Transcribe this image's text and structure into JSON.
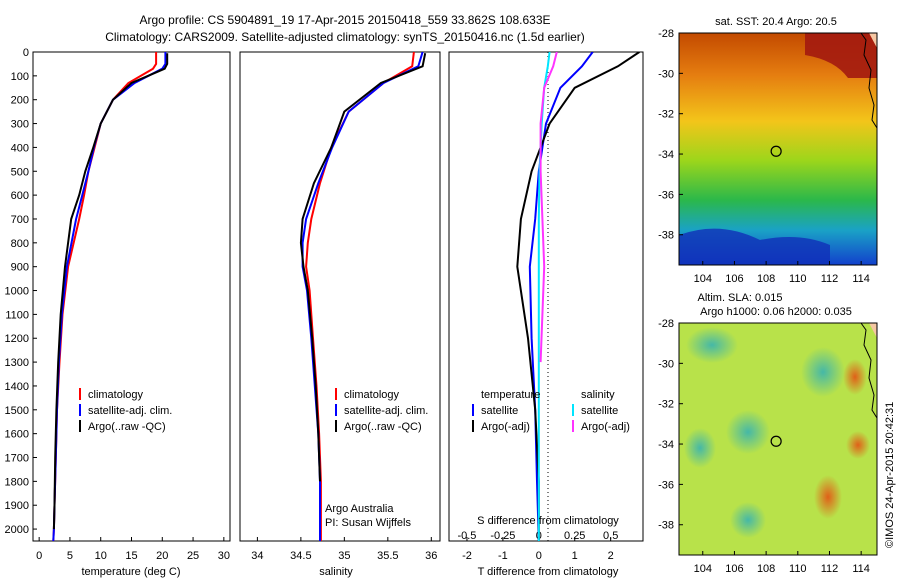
{
  "header": {
    "line1": "Argo profile: CS 5904891_19 17-Apr-2015 20150418_559 33.862S 108.633E",
    "line2": "Climatology: CARS2009. Satellite-adjusted climatology: synTS_20150416.nc (1.5d earlier)"
  },
  "colors": {
    "climatology": "#ff0000",
    "satellite": "#0000ff",
    "argo": "#000000",
    "sat_salinity": "#00e5ff",
    "argo_salinity_adj": "#ff33ff"
  },
  "chart_data": [
    {
      "type": "line",
      "panel": "temperature",
      "xlabel": "temperature (deg C)",
      "ylabel": "",
      "xlim": [
        -1,
        31
      ],
      "ylim": [
        2050,
        0
      ],
      "xticks": [
        "0",
        "5",
        "10",
        "15",
        "20",
        "25",
        "30"
      ],
      "yticks": [
        "0",
        "100",
        "200",
        "300",
        "400",
        "500",
        "600",
        "700",
        "800",
        "900",
        "1000",
        "1100",
        "1200",
        "1300",
        "1400",
        "1500",
        "1600",
        "1700",
        "1800",
        "1900",
        "2000"
      ],
      "legend": [
        "climatology",
        "satellite-adj. clim.",
        "Argo(..raw -QC)"
      ],
      "series": [
        {
          "name": "climatology",
          "color": "#ff0000",
          "x": [
            19.0,
            19.0,
            18.5,
            14.5,
            12.0,
            10.0,
            9.0,
            8.0,
            7.3,
            6.5,
            4.7,
            3.8,
            3.3,
            2.9,
            2.7,
            2.5,
            2.4,
            2.3
          ],
          "y": [
            0,
            50,
            70,
            130,
            200,
            300,
            400,
            500,
            600,
            700,
            900,
            1100,
            1300,
            1500,
            1700,
            1900,
            2000,
            2050
          ]
        },
        {
          "name": "satellite-adj. clim.",
          "color": "#0000ff",
          "x": [
            20.5,
            20.5,
            20.0,
            15.5,
            12.0,
            10.0,
            8.9,
            8.0,
            7.0,
            6.0,
            4.5,
            3.7,
            3.2,
            2.9,
            2.7,
            2.5,
            2.4,
            2.3
          ],
          "y": [
            0,
            50,
            70,
            130,
            200,
            300,
            400,
            500,
            600,
            700,
            900,
            1100,
            1300,
            1500,
            1700,
            1900,
            2000,
            2050
          ]
        },
        {
          "name": "Argo(..raw -QC)",
          "color": "#000000",
          "x": [
            20.8,
            20.8,
            20.4,
            15.0,
            12.0,
            10.0,
            8.8,
            7.5,
            6.5,
            5.2,
            4.2,
            3.5,
            3.1,
            2.8,
            2.6,
            2.5,
            2.4
          ],
          "y": [
            5,
            50,
            70,
            130,
            200,
            300,
            400,
            500,
            600,
            700,
            900,
            1100,
            1300,
            1500,
            1700,
            1900,
            2000
          ]
        }
      ]
    },
    {
      "type": "line",
      "panel": "salinity",
      "xlabel": "salinity",
      "xlim": [
        33.8,
        36.1
      ],
      "ylim": [
        2050,
        0
      ],
      "xticks": [
        "34",
        "34.5",
        "35",
        "35.5",
        "36"
      ],
      "legend": [
        "climatology",
        "satellite-adj. clim.",
        "Argo(..raw -QC)"
      ],
      "annotation": [
        "Argo Australia",
        "PI: Susan Wijffels"
      ],
      "series": [
        {
          "name": "climatology",
          "color": "#ff0000",
          "x": [
            35.8,
            35.78,
            35.45,
            35.05,
            34.85,
            34.72,
            34.62,
            34.58,
            34.56,
            34.6,
            34.64,
            34.68,
            34.71,
            34.73,
            34.73
          ],
          "y": [
            0,
            60,
            130,
            250,
            400,
            550,
            700,
            800,
            900,
            1000,
            1200,
            1400,
            1600,
            1800,
            2050
          ]
        },
        {
          "name": "satellite-adj. clim.",
          "color": "#0000ff",
          "x": [
            35.9,
            35.85,
            35.45,
            35.05,
            34.86,
            34.7,
            34.56,
            34.52,
            34.52,
            34.57,
            34.62,
            34.66,
            34.7,
            34.72,
            34.72
          ],
          "y": [
            0,
            60,
            130,
            250,
            400,
            550,
            700,
            800,
            900,
            1000,
            1200,
            1400,
            1600,
            1800,
            2050
          ]
        },
        {
          "name": "Argo(..raw -QC)",
          "color": "#000000",
          "x": [
            35.93,
            35.9,
            35.42,
            35.0,
            34.85,
            34.65,
            34.52,
            34.5,
            34.53,
            34.58,
            34.63,
            34.67,
            34.7,
            34.72
          ],
          "y": [
            5,
            60,
            130,
            250,
            400,
            550,
            700,
            800,
            900,
            1000,
            1200,
            1400,
            1600,
            1800
          ]
        }
      ]
    },
    {
      "type": "line",
      "panel": "difference",
      "xlabel_top": "S difference from climatology",
      "xlabel": "T difference from climatology",
      "xlim": [
        -2.5,
        2.9
      ],
      "ylim": [
        2050,
        0
      ],
      "xticks_top": [
        "-0.5",
        "-0.25",
        "0",
        "0.25",
        "0.5"
      ],
      "xticks": [
        "-2",
        "-1",
        "0",
        "1",
        "2"
      ],
      "legend_headers": [
        "temperature",
        "salinity"
      ],
      "legend": [
        "satellite",
        "Argo(-adj)",
        "satellite",
        "Argo(-adj)"
      ],
      "series": [
        {
          "name": "satellite",
          "color": "#0000ff",
          "x": [
            1.5,
            1.2,
            0.6,
            0.2,
            0.0,
            -0.1,
            -0.25,
            -0.2,
            -0.1,
            -0.05,
            0.0
          ],
          "y": [
            0,
            60,
            150,
            300,
            500,
            700,
            900,
            1200,
            1500,
            1800,
            2050
          ]
        },
        {
          "name": "Argo(-adj)",
          "color": "#000000",
          "x": [
            2.8,
            2.2,
            1.0,
            0.3,
            -0.2,
            -0.5,
            -0.6,
            -0.3,
            -0.1,
            0.0,
            0.0
          ],
          "y": [
            0,
            60,
            150,
            300,
            500,
            700,
            900,
            1200,
            1500,
            1800,
            2050
          ]
        },
        {
          "name": "satellite",
          "color": "#00e5ff",
          "x": [
            0.3,
            0.25,
            0.15,
            0.08,
            0.02,
            0.0,
            0.0,
            0.0,
            0.0
          ],
          "y": [
            0,
            60,
            150,
            300,
            500,
            700,
            900,
            1200,
            2050
          ]
        },
        {
          "name": "Argo(-adj)",
          "color": "#ff33ff",
          "x": [
            0.5,
            0.4,
            0.15,
            0.05,
            0.05,
            0.1,
            0.15,
            0.1,
            0.05
          ],
          "y": [
            0,
            60,
            150,
            300,
            500,
            700,
            900,
            1100,
            1300
          ]
        }
      ]
    },
    {
      "type": "heatmap",
      "panel": "sst_map",
      "title": "sat. SST: 20.4  Argo: 20.5",
      "xticks": [
        "104",
        "106",
        "108",
        "110",
        "112",
        "114"
      ],
      "yticks": [
        "-28",
        "-30",
        "-32",
        "-34",
        "-36",
        "-38"
      ],
      "xlim": [
        102.5,
        115
      ],
      "ylim": [
        -39.5,
        -28
      ],
      "marker": {
        "lon": 108.633,
        "lat": -33.862
      }
    },
    {
      "type": "heatmap",
      "panel": "sla_map",
      "title": "Altim. SLA: 0.015",
      "subtitle": "Argo h1000: 0.06 h2000: 0.035",
      "xticks": [
        "104",
        "106",
        "108",
        "110",
        "112",
        "114"
      ],
      "yticks": [
        "-28",
        "-30",
        "-32",
        "-34",
        "-36",
        "-38"
      ],
      "xlim": [
        102.5,
        115
      ],
      "ylim": [
        -39.5,
        -28
      ],
      "marker": {
        "lon": 108.633,
        "lat": -33.862
      }
    }
  ],
  "watermark": "©IMOS 24-Apr-2015 20:42:31"
}
